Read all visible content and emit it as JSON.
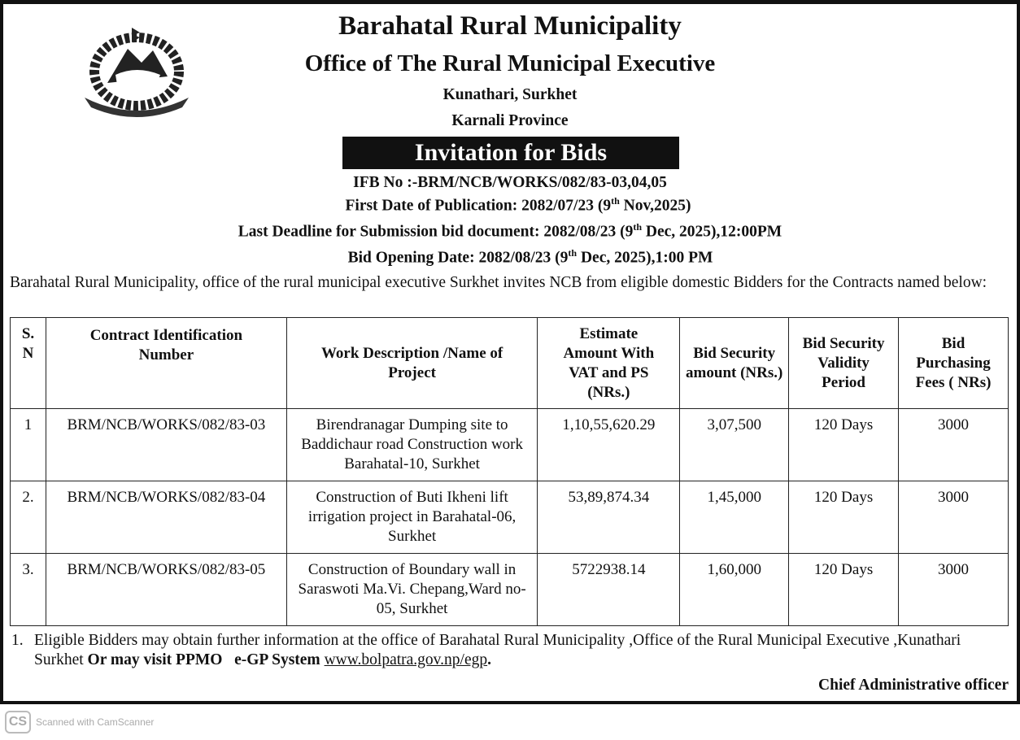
{
  "header": {
    "title": "Barahatal Rural Municipality",
    "subtitle": "Office of The Rural Municipal Executive",
    "address": "Kunathari, Surkhet",
    "province": "Karnali Province",
    "emblem": "nepal-government-emblem"
  },
  "banner": "Invitation for Bids",
  "meta": {
    "ifb": "IFB No :-BRM/NCB/WORKS/082/83-03,04,05",
    "pub_a": "First Date of  Publication: 2082/07/23 (9",
    "pub_sup": "th",
    "pub_b": " Nov,2025)",
    "dead_a": "Last Deadline for Submission bid document: 2082/08/23 (9",
    "dead_sup": "th",
    "dead_b": " Dec, 2025),12:00PM",
    "open_a": "Bid Opening Date: 2082/08/23 (9",
    "open_sup": "th",
    "open_b": " Dec, 2025),1:00 PM"
  },
  "intro": "Barahatal Rural Municipality, office of the rural municipal executive Surkhet invites NCB from eligible domestic Bidders for the Contracts named below:",
  "table": {
    "headers": [
      "S. N",
      "Contract Identification Number",
      "Work Description /Name of Project",
      "Estimate Amount With VAT and PS (NRs.)",
      "Bid Security amount (NRs.)",
      "Bid Security Validity Period",
      "Bid Purchasing Fees ( NRs)"
    ],
    "rows": [
      [
        "1",
        "BRM/NCB/WORKS/082/83-03",
        "Birendranagar Dumping site to Baddichaur road Construction work Barahatal-10, Surkhet",
        "1,10,55,620.29",
        "3,07,500",
        "120 Days",
        "3000"
      ],
      [
        "2.",
        "BRM/NCB/WORKS/082/83-04",
        "Construction of Buti Ikheni lift irrigation project  in Barahatal-06, Surkhet",
        "53,89,874.34",
        "1,45,000",
        "120 Days",
        "3000"
      ],
      [
        "3.",
        "BRM/NCB/WORKS/082/83-05",
        "Construction of Boundary wall in Saraswoti Ma.Vi. Chepang,Ward no-05, Surkhet",
        "5722938.14",
        "1,60,000",
        "120 Days",
        "3000"
      ]
    ]
  },
  "note": {
    "num": "1.",
    "text": "Eligible Bidders may obtain further information at the office of Barahatal Rural Municipality ,Office of the Rural Municipal Executive ,Kunathari Surkhet",
    "bold": "Or may visit PPMO   e-GP System",
    "link": "www.bolpatra.gov.np/egp",
    "end": "."
  },
  "signature": "Chief Administrative officer",
  "watermark": {
    "logo": "CS",
    "text": "Scanned with CamScanner"
  }
}
